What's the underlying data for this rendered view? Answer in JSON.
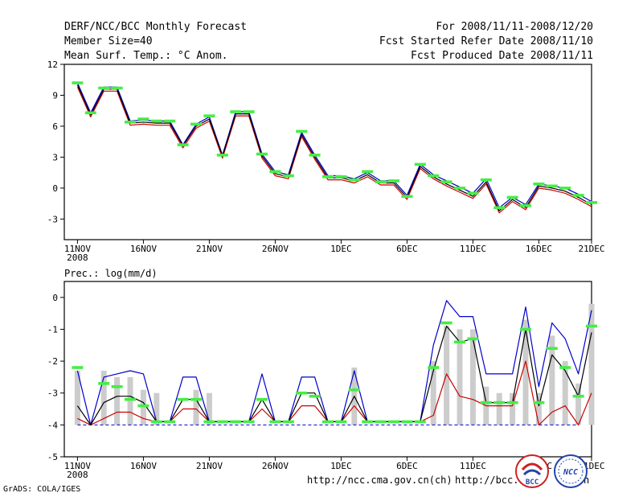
{
  "header": {
    "title": "DERF/NCC/BCC Monthly Forecast",
    "member_size": "Member Size=40",
    "variable": "Mean Surf. Temp.: °C Anom.",
    "period": "For 2008/11/11-2008/12/20",
    "started": "Fcst Started Refer Date 2008/11/10",
    "produced": "Fcst Produced Date 2008/11/11"
  },
  "footer": {
    "grads": "GrADS: COLA/IGES",
    "url1": "http://ncc.cma.gov.cn(ch)",
    "url2": "http://bcc.c",
    "url_tail": "n"
  },
  "logos": {
    "bcc": "BCC",
    "ncc": "NCC"
  },
  "colors": {
    "ensemble_max": "#0000cc",
    "ensemble_mean": "#000000",
    "ensemble_min": "#cc0000",
    "marker": "#44ee44",
    "bar": "#cccccc",
    "baseline": "#0000cc"
  },
  "chart_data": [
    {
      "type": "line",
      "title": "Mean Surf. Temp.: °C Anom.",
      "x_ticks": [
        "11NOV",
        "16NOV",
        "21NOV",
        "26NOV",
        "1DEC",
        "6DEC",
        "11DEC",
        "16DEC",
        "21DEC"
      ],
      "x_sub": "2008",
      "ylim": [
        -5,
        12
      ],
      "y_ticks": [
        "12",
        "9",
        "6",
        "3",
        "0",
        "-3"
      ],
      "series": [
        {
          "name": "max",
          "values": [
            10.2,
            7.3,
            9.8,
            9.8,
            6.5,
            6.6,
            6.5,
            6.5,
            4.2,
            6.2,
            6.9,
            3.2,
            7.4,
            7.4,
            3.3,
            1.6,
            1.3,
            5.4,
            3.2,
            1.2,
            1.2,
            0.9,
            1.5,
            0.7,
            0.7,
            -0.7,
            2.3,
            1.3,
            0.7,
            0.1,
            -0.5,
            0.9,
            -1.9,
            -0.9,
            -1.6,
            0.4,
            0.2,
            0.0,
            -0.6,
            -1.3
          ]
        },
        {
          "name": "mean",
          "values": [
            10.0,
            7.1,
            9.6,
            9.6,
            6.3,
            6.4,
            6.3,
            6.3,
            4.1,
            6.0,
            6.7,
            3.1,
            7.2,
            7.2,
            3.1,
            1.4,
            1.1,
            5.2,
            3.0,
            1.0,
            1.0,
            0.7,
            1.3,
            0.5,
            0.5,
            -0.9,
            2.1,
            1.1,
            0.4,
            -0.2,
            -0.8,
            0.6,
            -2.2,
            -1.1,
            -1.9,
            0.2,
            0.0,
            -0.3,
            -0.9,
            -1.6
          ]
        },
        {
          "name": "min",
          "values": [
            9.8,
            6.9,
            9.4,
            9.4,
            6.1,
            6.2,
            6.1,
            6.1,
            3.9,
            5.8,
            6.5,
            2.9,
            7.0,
            7.0,
            2.9,
            1.2,
            0.9,
            5.0,
            2.8,
            0.8,
            0.8,
            0.5,
            1.1,
            0.3,
            0.3,
            -1.1,
            1.9,
            0.9,
            0.2,
            -0.4,
            -1.0,
            0.4,
            -2.4,
            -1.3,
            -2.1,
            0.0,
            -0.2,
            -0.5,
            -1.1,
            -1.8
          ]
        },
        {
          "name": "marker",
          "values": [
            10.2,
            7.3,
            9.7,
            9.7,
            6.4,
            6.7,
            6.5,
            6.5,
            4.2,
            6.2,
            7.0,
            3.2,
            7.4,
            7.4,
            3.3,
            1.6,
            1.2,
            5.5,
            3.2,
            1.1,
            1.1,
            0.8,
            1.6,
            0.6,
            0.7,
            -0.8,
            2.3,
            1.2,
            0.6,
            0.0,
            -0.5,
            0.8,
            -1.9,
            -0.9,
            -1.7,
            0.4,
            0.2,
            0.0,
            -0.7,
            -1.4
          ]
        }
      ]
    },
    {
      "type": "line",
      "title": "Prec.: log(mm/d)",
      "x_ticks": [
        "11NOV",
        "16NOV",
        "21NOV",
        "26NOV",
        "1DEC",
        "6DEC",
        "11DEC",
        "16DEC",
        "21DEC"
      ],
      "x_sub": "2008",
      "ylim": [
        -5,
        0.5
      ],
      "y_ticks": [
        "0",
        "-1",
        "-2",
        "-3",
        "-4",
        "-5"
      ],
      "baseline": -4,
      "series": [
        {
          "name": "bars",
          "values": [
            -2.3,
            -4,
            -2.3,
            -2.5,
            -2.5,
            -2.9,
            -3.0,
            -3.9,
            -3.9,
            -2.9,
            -3.0,
            -3.9,
            -3.9,
            -3.9,
            -3.9,
            -3.9,
            -3.9,
            -3.9,
            -3.9,
            -3.9,
            -3.9,
            -2.2,
            -3.9,
            -3.9,
            -3.9,
            -3.9,
            -3.9,
            -2.0,
            -0.9,
            -1.0,
            -1.0,
            -2.8,
            -3.0,
            -3.0,
            -0.7,
            -3.0,
            -1.2,
            -2.0,
            -2.7,
            -0.2
          ]
        },
        {
          "name": "max",
          "values": [
            -2.3,
            -4,
            -2.5,
            -2.4,
            -2.3,
            -2.4,
            -3.9,
            -3.9,
            -2.5,
            -2.5,
            -3.9,
            -3.9,
            -3.9,
            -3.9,
            -2.4,
            -3.9,
            -3.9,
            -2.5,
            -2.5,
            -3.9,
            -3.9,
            -2.3,
            -3.9,
            -3.9,
            -3.9,
            -3.9,
            -3.9,
            -1.5,
            -0.1,
            -0.6,
            -0.6,
            -2.4,
            -2.4,
            -2.4,
            -0.3,
            -2.8,
            -0.8,
            -1.3,
            -2.4,
            -0.4
          ]
        },
        {
          "name": "mean",
          "values": [
            -3.4,
            -4,
            -3.3,
            -3.1,
            -3.1,
            -3.3,
            -3.9,
            -3.9,
            -3.2,
            -3.2,
            -3.9,
            -3.9,
            -3.9,
            -3.9,
            -3.2,
            -3.9,
            -3.9,
            -3.0,
            -3.0,
            -3.9,
            -3.9,
            -3.1,
            -3.9,
            -3.9,
            -3.9,
            -3.9,
            -3.9,
            -2.3,
            -0.9,
            -1.4,
            -1.3,
            -3.3,
            -3.3,
            -3.3,
            -1.0,
            -3.4,
            -1.8,
            -2.3,
            -3.1,
            -1.1
          ]
        },
        {
          "name": "min",
          "values": [
            -3.8,
            -4,
            -3.8,
            -3.6,
            -3.6,
            -3.8,
            -3.9,
            -3.9,
            -3.5,
            -3.5,
            -3.9,
            -3.9,
            -3.9,
            -3.9,
            -3.5,
            -3.9,
            -3.9,
            -3.4,
            -3.4,
            -3.9,
            -3.9,
            -3.4,
            -3.9,
            -3.9,
            -3.9,
            -3.9,
            -3.9,
            -3.7,
            -2.4,
            -3.1,
            -3.2,
            -3.4,
            -3.4,
            -3.4,
            -2.0,
            -4.0,
            -3.6,
            -3.4,
            -4.0,
            -3.0
          ]
        },
        {
          "name": "marker",
          "values": [
            -2.2,
            -4,
            -2.7,
            -2.8,
            -3.2,
            -3.4,
            -3.9,
            -3.9,
            -3.2,
            -3.2,
            -3.9,
            -3.9,
            -3.9,
            -3.9,
            -3.2,
            -3.9,
            -3.9,
            -3.0,
            -3.1,
            -3.9,
            -3.9,
            -2.9,
            -3.9,
            -3.9,
            -3.9,
            -3.9,
            -3.9,
            -2.2,
            -0.8,
            -1.4,
            -1.3,
            -3.3,
            -3.3,
            -3.3,
            -1.0,
            -3.3,
            -1.6,
            -2.2,
            -3.1,
            -0.9
          ]
        }
      ]
    }
  ]
}
